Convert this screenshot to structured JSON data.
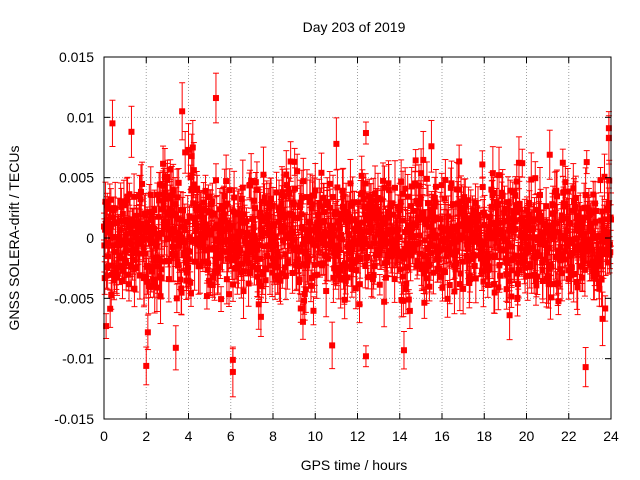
{
  "chart_data": {
    "type": "scatter",
    "title": "Day 203 of 2019",
    "xlabel": "GPS time / hours",
    "ylabel": "GNSS SOLERA-drift / TECUs",
    "xlim": [
      0,
      24
    ],
    "ylim": [
      -0.015,
      0.015
    ],
    "x_ticks": [
      0,
      2,
      4,
      6,
      8,
      10,
      12,
      14,
      16,
      18,
      20,
      22,
      24
    ],
    "y_ticks": [
      -0.015,
      -0.01,
      -0.005,
      0,
      0.005,
      0.01,
      0.015
    ],
    "x_tick_labels": [
      "0",
      "2",
      "4",
      "6",
      "8",
      "10",
      "12",
      "14",
      "16",
      "18",
      "20",
      "22",
      "24"
    ],
    "y_tick_labels": [
      "-0.015",
      "-0.01",
      "-0.005",
      "0",
      "0.005",
      "0.01",
      "0.015"
    ],
    "grid": true,
    "error_bars": true,
    "series_color": "#ff0000",
    "outliers": [
      {
        "x": 0.4,
        "y": 0.0095
      },
      {
        "x": 0.1,
        "y": -0.0073
      },
      {
        "x": 1.3,
        "y": 0.0088
      },
      {
        "x": 2.0,
        "y": -0.0106
      },
      {
        "x": 3.4,
        "y": -0.0091
      },
      {
        "x": 3.7,
        "y": 0.0105
      },
      {
        "x": 4.0,
        "y": 0.0073
      },
      {
        "x": 5.3,
        "y": 0.0116
      },
      {
        "x": 6.1,
        "y": -0.0101
      },
      {
        "x": 6.1,
        "y": -0.0111
      },
      {
        "x": 10.8,
        "y": -0.0089
      },
      {
        "x": 11.0,
        "y": 0.0078
      },
      {
        "x": 12.4,
        "y": 0.0087
      },
      {
        "x": 12.4,
        "y": -0.0098
      },
      {
        "x": 14.2,
        "y": -0.0093
      },
      {
        "x": 15.5,
        "y": 0.0076
      },
      {
        "x": 19.2,
        "y": -0.0064
      },
      {
        "x": 19.8,
        "y": 0.0062
      },
      {
        "x": 21.1,
        "y": 0.0069
      },
      {
        "x": 22.8,
        "y": -0.0107
      },
      {
        "x": 23.6,
        "y": -0.0067
      },
      {
        "x": 23.9,
        "y": 0.0091
      },
      {
        "x": 23.9,
        "y": 0.0083
      }
    ]
  }
}
